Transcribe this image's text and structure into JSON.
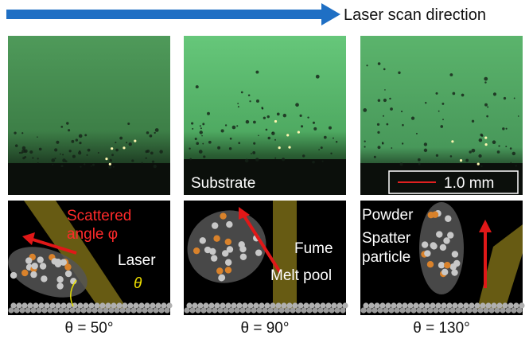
{
  "header": {
    "direction_label": "Laser scan direction"
  },
  "photo_labels": {
    "substrate": "Substrate",
    "scale_bar": "1.0 mm"
  },
  "schematic_labels": {
    "scattered_line1": "Scattered",
    "scattered_line2": "angle φ",
    "laser": "Laser",
    "theta": "θ",
    "fume": "Fume",
    "melt_pool": "Melt pool",
    "powder": "Powder",
    "spatter_line1": "Spatter",
    "spatter_line2": "particle"
  },
  "captions": [
    "θ = 50°",
    "θ = 90°",
    "θ = 130°"
  ]
}
